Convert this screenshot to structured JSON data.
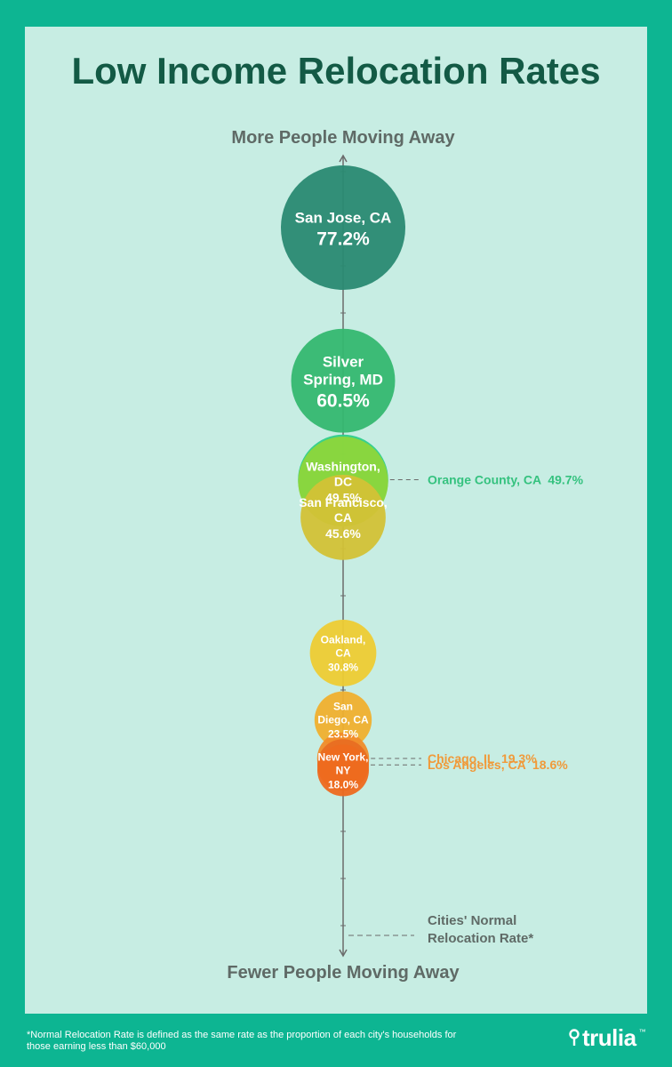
{
  "title": "Low Income Relocation Rates",
  "axis": {
    "top_label": "More People Moving Away",
    "bottom_label": "Fewer People Moving Away",
    "normal_label_line1": "Cities' Normal",
    "normal_label_line2": "Relocation Rate*"
  },
  "footnote_line1": "*Normal Relocation Rate is defined as the same rate as the proportion of each city's households for",
  "footnote_line2": "those earning less than $60,000",
  "brand": "trulia",
  "brand_mark": "™",
  "chart_data": {
    "type": "bubble",
    "title": "Low Income Relocation Rates",
    "ylabel_top": "More People Moving Away",
    "ylabel_bottom": "Fewer People Moving Away",
    "ylim": [
      0,
      90
    ],
    "grid": false,
    "points": [
      {
        "city": "San Jose, CA",
        "lines": [
          "San Jose, CA"
        ],
        "value": 77.2,
        "value_label": "77.2%",
        "color": "#2a8a72",
        "labeled": "inside"
      },
      {
        "city": "Silver Spring, MD",
        "lines": [
          "Silver",
          "Spring, MD"
        ],
        "value": 60.5,
        "value_label": "60.5%",
        "color": "#35b870",
        "labeled": "inside"
      },
      {
        "city": "Orange County, CA",
        "lines": [],
        "value": 49.7,
        "value_label": "49.7%",
        "color": "#2fcf8a",
        "labeled": "outside",
        "outside_label": "Orange County, CA  49.7%",
        "outside_color": "#35c27f"
      },
      {
        "city": "Washington, DC",
        "lines": [
          "Washington,",
          "DC"
        ],
        "value": 49.5,
        "value_label": "49.5%",
        "color": "#8dd63b",
        "labeled": "inside"
      },
      {
        "city": "San Francisco, CA",
        "lines": [
          "San Francisco,",
          "CA"
        ],
        "value": 45.6,
        "value_label": "45.6%",
        "color": "#d3c236",
        "labeled": "inside"
      },
      {
        "city": "Oakland, CA",
        "lines": [
          "Oakland,",
          "CA"
        ],
        "value": 30.8,
        "value_label": "30.8%",
        "color": "#eecc33",
        "labeled": "inside"
      },
      {
        "city": "San Diego, CA",
        "lines": [
          "San",
          "Diego, CA"
        ],
        "value": 23.5,
        "value_label": "23.5%",
        "color": "#f0b02e",
        "labeled": "inside"
      },
      {
        "city": "Chicago, IL",
        "lines": [],
        "value": 19.3,
        "value_label": "19.3%",
        "color": "#f08c2a",
        "labeled": "outside",
        "outside_label": "Chicago, IL  19.3%",
        "outside_color": "#f09a3a"
      },
      {
        "city": "Los Angeles, CA",
        "lines": [],
        "value": 18.6,
        "value_label": "18.6%",
        "color": "#e86e22",
        "labeled": "outside",
        "outside_label": "Los Angeles, CA  18.6%",
        "outside_color": "#f09a3a"
      },
      {
        "city": "New York, NY",
        "lines": [
          "New York,",
          "NY"
        ],
        "value": 18.0,
        "value_label": "18.0%",
        "color": "#ee6a1f",
        "labeled": "inside"
      }
    ]
  }
}
